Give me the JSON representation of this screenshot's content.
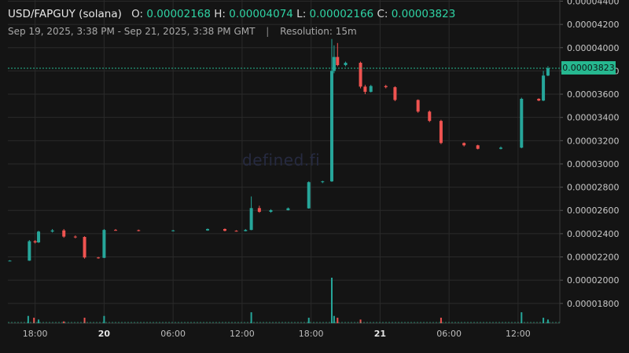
{
  "header": {
    "symbol": "USD/FAPGUY (solana)",
    "open_key": "O:",
    "open_value": "0.00002168",
    "high_key": "H:",
    "high_value": "0.00004074",
    "low_key": "L:",
    "low_value": "0.00002166",
    "close_key": "C:",
    "close_value": "0.00003823",
    "range": "Sep 19, 2025, 3:38 PM - Sep 21, 2025, 3:38 PM GMT",
    "separator": "|",
    "resolution": "Resolution: 15m"
  },
  "watermark": "defined.fi",
  "current_price_label": "0.00003823",
  "colors": {
    "background": "#141414",
    "up": "#26a69a",
    "down": "#ef5350",
    "grid": "#2a2a2a",
    "price_line": "#26b890"
  },
  "chart_data": {
    "type": "candlestick",
    "yticks": [
      "0.00001800",
      "0.00002000",
      "0.00002200",
      "0.00002400",
      "0.00002600",
      "0.00002800",
      "0.00003000",
      "0.00003200",
      "0.00003400",
      "0.00003600",
      "0.00003800",
      "0.00004000",
      "0.00004200",
      "0.00004400"
    ],
    "ylim": [
      1.63e-05,
      4.41e-05
    ],
    "xticks": [
      {
        "label": "18:00",
        "hours": 18,
        "bold": false
      },
      {
        "label": "20",
        "hours": 24,
        "bold": true
      },
      {
        "label": "06:00",
        "hours": 30,
        "bold": false
      },
      {
        "label": "12:00",
        "hours": 36,
        "bold": false
      },
      {
        "label": "18:00",
        "hours": 42,
        "bold": false
      },
      {
        "label": "21",
        "hours": 48,
        "bold": true
      },
      {
        "label": "06:00",
        "hours": 54,
        "bold": false
      },
      {
        "label": "12:00",
        "hours": 60,
        "bold": false
      }
    ],
    "x_start_hours": 15.63,
    "x_end_hours": 63.63,
    "candles": [
      {
        "t": 15.8,
        "o": 2.168,
        "h": 2.172,
        "l": 2.166,
        "c": 2.168
      },
      {
        "t": 17.5,
        "o": 2.168,
        "h": 2.345,
        "l": 2.166,
        "c": 2.335
      },
      {
        "t": 18.0,
        "o": 2.335,
        "h": 2.345,
        "l": 2.315,
        "c": 2.325
      },
      {
        "t": 18.3,
        "o": 2.325,
        "h": 2.425,
        "l": 2.32,
        "c": 2.418
      },
      {
        "t": 19.5,
        "o": 2.418,
        "h": 2.44,
        "l": 2.41,
        "c": 2.428
      },
      {
        "t": 20.5,
        "o": 2.428,
        "h": 2.44,
        "l": 2.365,
        "c": 2.375
      },
      {
        "t": 21.5,
        "o": 2.375,
        "h": 2.385,
        "l": 2.36,
        "c": 2.372
      },
      {
        "t": 22.3,
        "o": 2.372,
        "h": 2.378,
        "l": 2.185,
        "c": 2.195
      },
      {
        "t": 23.5,
        "o": 2.195,
        "h": 2.2,
        "l": 2.185,
        "c": 2.192
      },
      {
        "t": 24.0,
        "o": 2.192,
        "h": 2.44,
        "l": 2.19,
        "c": 2.432
      },
      {
        "t": 25.0,
        "o": 2.432,
        "h": 2.44,
        "l": 2.425,
        "c": 2.43
      },
      {
        "t": 27.0,
        "o": 2.43,
        "h": 2.435,
        "l": 2.42,
        "c": 2.425
      },
      {
        "t": 30.0,
        "o": 2.425,
        "h": 2.432,
        "l": 2.42,
        "c": 2.428
      },
      {
        "t": 33.0,
        "o": 2.428,
        "h": 2.445,
        "l": 2.425,
        "c": 2.44
      },
      {
        "t": 34.5,
        "o": 2.44,
        "h": 2.445,
        "l": 2.42,
        "c": 2.425
      },
      {
        "t": 35.5,
        "o": 2.425,
        "h": 2.43,
        "l": 2.418,
        "c": 2.422
      },
      {
        "t": 36.3,
        "o": 2.422,
        "h": 2.44,
        "l": 2.42,
        "c": 2.432
      },
      {
        "t": 36.8,
        "o": 2.432,
        "h": 2.72,
        "l": 2.43,
        "c": 2.62
      },
      {
        "t": 37.5,
        "o": 2.62,
        "h": 2.64,
        "l": 2.58,
        "c": 2.588
      },
      {
        "t": 38.5,
        "o": 2.588,
        "h": 2.61,
        "l": 2.58,
        "c": 2.602
      },
      {
        "t": 40.0,
        "o": 2.602,
        "h": 2.625,
        "l": 2.6,
        "c": 2.618
      },
      {
        "t": 41.8,
        "o": 2.618,
        "h": 2.85,
        "l": 2.615,
        "c": 2.843
      },
      {
        "t": 43.0,
        "o": 2.843,
        "h": 2.855,
        "l": 2.835,
        "c": 2.85
      },
      {
        "t": 43.8,
        "o": 2.85,
        "h": 4.074,
        "l": 2.845,
        "c": 3.8
      },
      {
        "t": 44.0,
        "o": 3.8,
        "h": 4.02,
        "l": 3.78,
        "c": 3.92
      },
      {
        "t": 44.3,
        "o": 3.92,
        "h": 4.04,
        "l": 3.84,
        "c": 3.85
      },
      {
        "t": 45.0,
        "o": 3.85,
        "h": 3.88,
        "l": 3.84,
        "c": 3.87
      },
      {
        "t": 46.3,
        "o": 3.87,
        "h": 3.88,
        "l": 3.65,
        "c": 3.665
      },
      {
        "t": 46.7,
        "o": 3.665,
        "h": 3.68,
        "l": 3.6,
        "c": 3.62
      },
      {
        "t": 47.2,
        "o": 3.62,
        "h": 3.68,
        "l": 3.615,
        "c": 3.67
      },
      {
        "t": 48.5,
        "o": 3.67,
        "h": 3.68,
        "l": 3.65,
        "c": 3.66
      },
      {
        "t": 49.3,
        "o": 3.66,
        "h": 3.668,
        "l": 3.54,
        "c": 3.55
      },
      {
        "t": 51.3,
        "o": 3.55,
        "h": 3.555,
        "l": 3.44,
        "c": 3.45
      },
      {
        "t": 52.3,
        "o": 3.45,
        "h": 3.46,
        "l": 3.36,
        "c": 3.37
      },
      {
        "t": 53.3,
        "o": 3.37,
        "h": 3.38,
        "l": 3.17,
        "c": 3.18
      },
      {
        "t": 55.3,
        "o": 3.18,
        "h": 3.185,
        "l": 3.15,
        "c": 3.16
      },
      {
        "t": 56.5,
        "o": 3.16,
        "h": 3.165,
        "l": 3.125,
        "c": 3.13
      },
      {
        "t": 58.5,
        "o": 3.13,
        "h": 3.15,
        "l": 3.125,
        "c": 3.14
      },
      {
        "t": 60.3,
        "o": 3.14,
        "h": 3.57,
        "l": 3.135,
        "c": 3.56
      },
      {
        "t": 61.8,
        "o": 3.56,
        "h": 3.565,
        "l": 3.54,
        "c": 3.545
      },
      {
        "t": 62.2,
        "o": 3.545,
        "h": 3.8,
        "l": 3.54,
        "c": 3.76
      },
      {
        "t": 62.6,
        "o": 3.76,
        "h": 3.84,
        "l": 3.755,
        "c": 3.823
      }
    ],
    "price_scale": 1e-05,
    "volumes": [
      {
        "t": 17.4,
        "v": 4,
        "up": true
      },
      {
        "t": 17.9,
        "v": 3,
        "up": false
      },
      {
        "t": 18.3,
        "v": 2,
        "up": true
      },
      {
        "t": 20.5,
        "v": 1,
        "up": false
      },
      {
        "t": 22.3,
        "v": 3,
        "up": false
      },
      {
        "t": 24.0,
        "v": 4,
        "up": true
      },
      {
        "t": 36.8,
        "v": 6,
        "up": true
      },
      {
        "t": 41.8,
        "v": 3,
        "up": true
      },
      {
        "t": 43.8,
        "v": 25,
        "up": true
      },
      {
        "t": 44.0,
        "v": 4,
        "up": true
      },
      {
        "t": 44.3,
        "v": 3,
        "up": false
      },
      {
        "t": 46.3,
        "v": 2,
        "up": false
      },
      {
        "t": 53.3,
        "v": 3,
        "up": false
      },
      {
        "t": 60.3,
        "v": 6,
        "up": true
      },
      {
        "t": 62.2,
        "v": 3,
        "up": true
      },
      {
        "t": 62.6,
        "v": 2,
        "up": true
      }
    ]
  }
}
